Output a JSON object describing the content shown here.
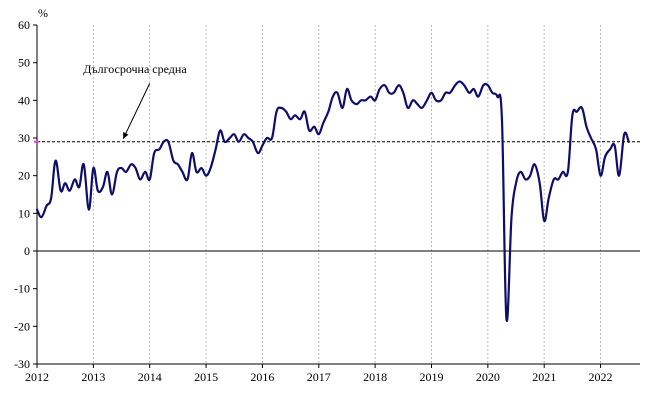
{
  "chart_data": {
    "type": "line",
    "y_unit_label": "%",
    "ylim": [
      -30,
      60
    ],
    "y_ticks": [
      -30,
      -20,
      -10,
      0,
      10,
      20,
      30,
      40,
      50,
      60
    ],
    "y_tick_labels": [
      "-30",
      "-20",
      "-10",
      "0",
      "10",
      "20",
      "30",
      "40",
      "50",
      "60"
    ],
    "xlim": [
      2012,
      2022.7
    ],
    "x_ticks": [
      2012,
      2013,
      2014,
      2015,
      2016,
      2017,
      2018,
      2019,
      2020,
      2021,
      2022
    ],
    "x_tick_labels": [
      "2012",
      "2013",
      "2014",
      "2015",
      "2016",
      "2017",
      "2018",
      "2019",
      "2020",
      "2021",
      "2022"
    ],
    "grid": "vertical dashed",
    "series": [
      {
        "color": "#0d0d6b",
        "x": [
          2012.0,
          2012.08,
          2012.17,
          2012.25,
          2012.33,
          2012.42,
          2012.5,
          2012.58,
          2012.67,
          2012.75,
          2012.83,
          2012.92,
          2013.0,
          2013.08,
          2013.17,
          2013.25,
          2013.33,
          2013.42,
          2013.5,
          2013.58,
          2013.67,
          2013.75,
          2013.83,
          2013.92,
          2014.0,
          2014.08,
          2014.17,
          2014.25,
          2014.33,
          2014.42,
          2014.5,
          2014.58,
          2014.67,
          2014.75,
          2014.83,
          2014.92,
          2015.0,
          2015.08,
          2015.17,
          2015.25,
          2015.33,
          2015.42,
          2015.5,
          2015.58,
          2015.67,
          2015.75,
          2015.83,
          2015.92,
          2016.0,
          2016.08,
          2016.17,
          2016.25,
          2016.33,
          2016.42,
          2016.5,
          2016.58,
          2016.67,
          2016.75,
          2016.83,
          2016.92,
          2017.0,
          2017.08,
          2017.17,
          2017.25,
          2017.33,
          2017.42,
          2017.5,
          2017.58,
          2017.67,
          2017.75,
          2017.83,
          2017.92,
          2018.0,
          2018.08,
          2018.17,
          2018.25,
          2018.33,
          2018.42,
          2018.5,
          2018.58,
          2018.67,
          2018.75,
          2018.83,
          2018.92,
          2019.0,
          2019.08,
          2019.17,
          2019.25,
          2019.33,
          2019.42,
          2019.5,
          2019.58,
          2019.67,
          2019.75,
          2019.83,
          2019.92,
          2020.0,
          2020.08,
          2020.17,
          2020.25,
          2020.33,
          2020.42,
          2020.5,
          2020.58,
          2020.67,
          2020.75,
          2020.83,
          2020.92,
          2021.0,
          2021.08,
          2021.17,
          2021.25,
          2021.33,
          2021.42,
          2021.5,
          2021.58,
          2021.67,
          2021.75,
          2021.83,
          2021.92,
          2022.0,
          2022.08,
          2022.17,
          2022.25,
          2022.33,
          2022.42,
          2022.5
        ],
        "values": [
          11,
          9,
          12,
          14,
          24,
          16,
          18,
          16,
          19,
          17,
          23,
          11,
          22,
          16,
          17,
          21,
          15,
          21,
          22,
          21,
          23,
          22,
          19,
          21,
          19,
          26,
          27,
          29,
          29,
          24,
          23,
          21,
          19,
          26,
          21,
          22,
          20,
          22,
          27,
          32,
          29,
          30,
          31,
          29,
          31,
          30,
          29,
          26,
          28,
          30,
          30,
          37,
          38,
          37,
          35,
          36,
          35,
          37,
          32,
          33,
          31,
          34,
          37,
          41,
          42,
          38,
          43,
          40,
          39,
          40,
          40,
          41,
          40,
          43,
          44,
          42,
          42,
          44,
          42,
          38,
          40,
          39,
          38,
          40,
          42,
          40,
          40,
          42,
          42,
          44,
          45,
          44,
          42,
          43,
          41,
          44,
          44,
          42,
          41,
          35,
          -18,
          9,
          18,
          21,
          19,
          20,
          23,
          18,
          8,
          14,
          19,
          19,
          21,
          21,
          36,
          37,
          38,
          33,
          30,
          27,
          20,
          25,
          27,
          28,
          20,
          31,
          29
        ]
      }
    ],
    "reference_lines": [
      {
        "label": "Дългосрочна средна",
        "y": 29,
        "style": "dashed"
      }
    ]
  }
}
